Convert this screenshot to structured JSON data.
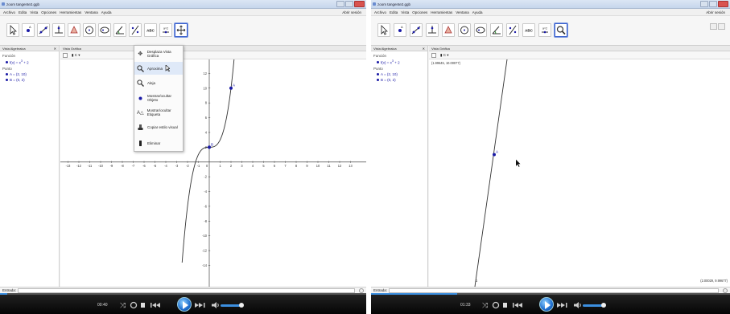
{
  "window": {
    "title": "zoom tangente2.ggb",
    "controls": [
      "minimize",
      "maximize",
      "close"
    ]
  },
  "menu": {
    "items": [
      "Archivo",
      "Edita",
      "Vista",
      "Opciones",
      "Herramientas",
      "Ventana",
      "Ayuda"
    ],
    "session": "Abrir sesión"
  },
  "algebra_view": {
    "title": "Vista Algebraica",
    "categories": [
      {
        "name": "Función",
        "objects": [
          {
            "pre": "f(x) = x",
            "sup": "3",
            "post": " + 2"
          }
        ]
      },
      {
        "name": "Punto",
        "objects": [
          {
            "text": "A = (2, 10)"
          },
          {
            "text": "B = (0, 2)"
          }
        ]
      }
    ]
  },
  "graphics_view": {
    "title": "Vista Gráfica",
    "style_bar": "▮ C ▾",
    "x_ticks": [
      "-13",
      "-12",
      "-11",
      "-10",
      "-9",
      "-8",
      "-7",
      "-6",
      "-5",
      "-4",
      "-3",
      "-2",
      "-1",
      "0",
      "1",
      "2",
      "3",
      "4",
      "5",
      "6",
      "7",
      "8",
      "9",
      "10",
      "11",
      "12",
      "13"
    ],
    "y_ticks": [
      "12",
      "10",
      "8",
      "6",
      "4",
      "2",
      "-2",
      "-4",
      "-6",
      "-8",
      "-10",
      "-12",
      "-14"
    ],
    "point_labels": {
      "A": "A",
      "B": "B"
    },
    "zoom_corner_top": "(1.99645, 10.00077)",
    "zoom_corner_bottom": "(2.00029, 9.99677)",
    "zoom_tick": "1"
  },
  "context_menu": {
    "items": [
      {
        "label": "Desplaza Vista Gráfica",
        "icon": "move-view-icon"
      },
      {
        "label": "Aproxima",
        "icon": "zoom-in-icon"
      },
      {
        "label": "Aleja",
        "icon": "zoom-out-icon"
      },
      {
        "label": "Mostrar/ocultar Objeto",
        "icon": "show-hide-object-icon"
      },
      {
        "label": "Mostrar/ocultar Etiqueta",
        "icon": "show-hide-label-icon"
      },
      {
        "label": "Copiar estilo visual",
        "icon": "copy-style-icon"
      },
      {
        "label": "Eliminar",
        "icon": "delete-icon"
      }
    ]
  },
  "toolbar": {
    "tools": [
      "move-tool",
      "point-tool",
      "line-tool",
      "perpendicular-tool",
      "polygon-tool",
      "circle-tool",
      "conic-tool",
      "angle-tool",
      "reflect-tool",
      "text-tool",
      "slider-tool",
      "move-graphics-view-tool"
    ],
    "text_tool_label": "ABC",
    "slider_tool_label": "a=2"
  },
  "input_bar": {
    "label": "Entrada:"
  },
  "player": {
    "left_time": "00:40",
    "right_time": "01:33",
    "left_progress": 0.02,
    "right_progress": 0.24
  },
  "colors": {
    "accent": "#1a1aa6",
    "selection": "#3a5fcd",
    "curve": "#333333",
    "player_blue": "#3c8fe0"
  }
}
